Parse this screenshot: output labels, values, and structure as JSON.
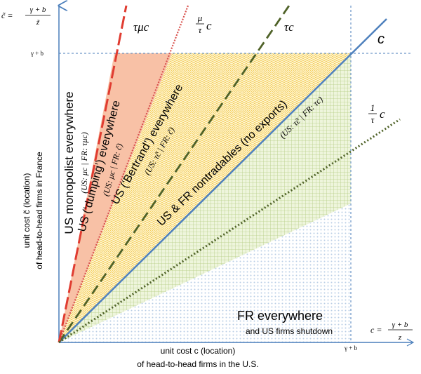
{
  "axes": {
    "y_label_line1": "unit cost c̃ (location)",
    "y_label_line2": "of head-to-head firms in France",
    "x_label_line1": "unit cost c (location)",
    "x_label_line2": "of head-to-head firms in the U.S.",
    "x_tick": "γ + b",
    "y_tick": "γ + b"
  },
  "axis_limits": {
    "y_eq": {
      "lhs": "c̃ =",
      "num": "γ + b",
      "den": "z̃"
    },
    "x_eq": {
      "lhs": "c =",
      "num": "γ + b",
      "den": "z"
    }
  },
  "lines": {
    "c": "c",
    "tau_c": "τc",
    "mu_over_tau_c": {
      "num": "μ",
      "den": "τ",
      "suffix": "c"
    },
    "tau_mu_c": "τμc",
    "one_over_tau_c": {
      "num": "1",
      "den": "τ",
      "suffix": "c"
    }
  },
  "regions": {
    "us_monopolist": {
      "title": "US monopolist everywhere",
      "sub": "(US: μc | FR: τμc)"
    },
    "us_dumping": {
      "title": "US (‘dumping’) everywhere",
      "sub": "(US: μc | FR: c̃)"
    },
    "us_bertrand": {
      "title": "US (‘Bertrand’) everywhere",
      "sub": "(US: τc̃ | FR: c̃)"
    },
    "nontradables": {
      "title": "US & FR nontradables (no exports)",
      "sub": "(US: τc̃ | FR: τc)"
    },
    "fr_everywhere": {
      "title": "FR everywhere",
      "sub": "and US firms shutdown"
    }
  },
  "colors": {
    "axis": "#4a7ebb",
    "c_line": "#4f81bd",
    "green_dashed": "#4f6228",
    "green_dotted": "#4f6228",
    "red_dashed": "#e03c31",
    "red_dotted": "#d9534f",
    "orange_fill": "#f8c1a6",
    "yellow_fill": "#fbe38e",
    "green_fill": "#c3d69b",
    "blue_dots": "#b9cde5"
  }
}
